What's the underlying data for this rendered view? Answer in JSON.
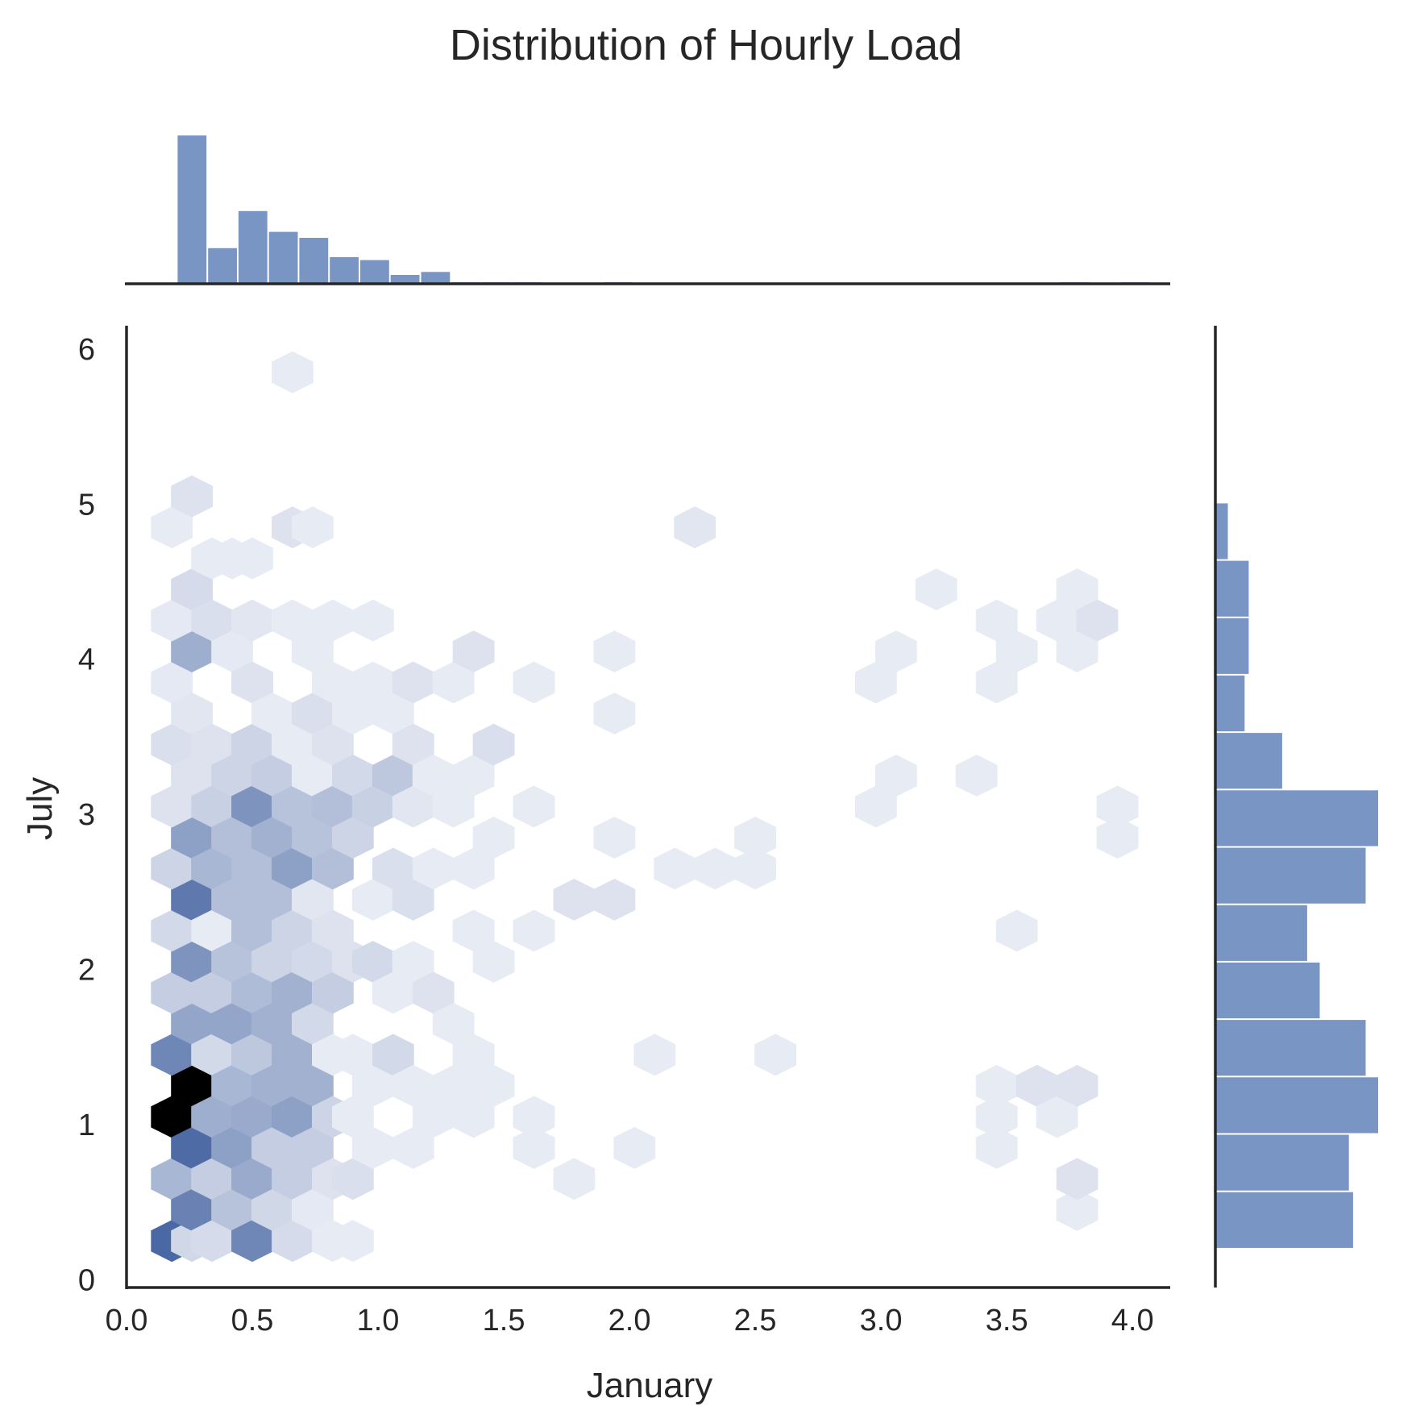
{
  "chart_data": {
    "type": "hexbin",
    "title": "Distribution of Hourly Load",
    "xlabel": "January",
    "ylabel": "July",
    "xlim": [
      0.0,
      4.15
    ],
    "ylim": [
      -0.05,
      6.15
    ],
    "x_ticks": [
      "0.0",
      "0.5",
      "1.0",
      "1.5",
      "2.0",
      "2.5",
      "3.0",
      "3.5",
      "4.0"
    ],
    "y_ticks": [
      "0",
      "1",
      "2",
      "3",
      "4",
      "5",
      "6"
    ],
    "grid": false,
    "colors": {
      "hist": "#4c72b0",
      "hex_max": "#000000",
      "hex_dark": "#3f5f9e",
      "hex_light": "#f2f4f9"
    },
    "hex_grid": {
      "dx": 0.164,
      "dy": 0.2
    },
    "hexbins": [
      {
        "x": 0.18,
        "y": 0.25,
        "d": 0.8
      },
      {
        "x": 0.26,
        "y": 0.25,
        "d": 0.16
      },
      {
        "x": 0.18,
        "y": 1.05,
        "d": 1.0
      },
      {
        "x": 0.18,
        "y": 0.65,
        "d": 0.35
      },
      {
        "x": 0.26,
        "y": 0.45,
        "d": 0.65
      },
      {
        "x": 0.26,
        "y": 0.85,
        "d": 0.78
      },
      {
        "x": 0.26,
        "y": 1.25,
        "d": 1.0
      },
      {
        "x": 0.18,
        "y": 1.45,
        "d": 0.62
      },
      {
        "x": 0.26,
        "y": 1.65,
        "d": 0.45
      },
      {
        "x": 0.18,
        "y": 1.85,
        "d": 0.22
      },
      {
        "x": 0.26,
        "y": 2.05,
        "d": 0.55
      },
      {
        "x": 0.18,
        "y": 2.25,
        "d": 0.15
      },
      {
        "x": 0.26,
        "y": 2.45,
        "d": 0.7
      },
      {
        "x": 0.18,
        "y": 2.65,
        "d": 0.18
      },
      {
        "x": 0.26,
        "y": 2.85,
        "d": 0.48
      },
      {
        "x": 0.18,
        "y": 3.05,
        "d": 0.1
      },
      {
        "x": 0.26,
        "y": 3.25,
        "d": 0.1
      },
      {
        "x": 0.18,
        "y": 3.45,
        "d": 0.12
      },
      {
        "x": 0.26,
        "y": 3.65,
        "d": 0.08
      },
      {
        "x": 0.18,
        "y": 3.85,
        "d": 0.06
      },
      {
        "x": 0.26,
        "y": 4.05,
        "d": 0.4
      },
      {
        "x": 0.18,
        "y": 4.25,
        "d": 0.06
      },
      {
        "x": 0.26,
        "y": 4.45,
        "d": 0.14
      },
      {
        "x": 0.18,
        "y": 4.85,
        "d": 0.05
      },
      {
        "x": 0.26,
        "y": 5.05,
        "d": 0.1
      },
      {
        "x": 0.34,
        "y": 0.25,
        "d": 0.14
      },
      {
        "x": 0.34,
        "y": 0.65,
        "d": 0.22
      },
      {
        "x": 0.34,
        "y": 1.05,
        "d": 0.4
      },
      {
        "x": 0.34,
        "y": 1.45,
        "d": 0.15
      },
      {
        "x": 0.34,
        "y": 1.85,
        "d": 0.22
      },
      {
        "x": 0.34,
        "y": 2.25,
        "d": 0.05
      },
      {
        "x": 0.34,
        "y": 2.65,
        "d": 0.35
      },
      {
        "x": 0.34,
        "y": 3.05,
        "d": 0.2
      },
      {
        "x": 0.34,
        "y": 3.45,
        "d": 0.1
      },
      {
        "x": 0.34,
        "y": 4.25,
        "d": 0.12
      },
      {
        "x": 0.34,
        "y": 4.65,
        "d": 0.05
      },
      {
        "x": 0.42,
        "y": 0.45,
        "d": 0.28
      },
      {
        "x": 0.42,
        "y": 0.85,
        "d": 0.48
      },
      {
        "x": 0.42,
        "y": 1.25,
        "d": 0.35
      },
      {
        "x": 0.42,
        "y": 1.65,
        "d": 0.45
      },
      {
        "x": 0.42,
        "y": 2.05,
        "d": 0.28
      },
      {
        "x": 0.42,
        "y": 2.45,
        "d": 0.3
      },
      {
        "x": 0.42,
        "y": 2.85,
        "d": 0.3
      },
      {
        "x": 0.42,
        "y": 3.25,
        "d": 0.18
      },
      {
        "x": 0.42,
        "y": 4.05,
        "d": 0.06
      },
      {
        "x": 0.42,
        "y": 4.65,
        "d": 0.05
      },
      {
        "x": 0.5,
        "y": 0.25,
        "d": 0.62
      },
      {
        "x": 0.5,
        "y": 0.65,
        "d": 0.42
      },
      {
        "x": 0.5,
        "y": 1.05,
        "d": 0.42
      },
      {
        "x": 0.5,
        "y": 1.45,
        "d": 0.25
      },
      {
        "x": 0.5,
        "y": 1.85,
        "d": 0.32
      },
      {
        "x": 0.5,
        "y": 2.25,
        "d": 0.3
      },
      {
        "x": 0.5,
        "y": 2.65,
        "d": 0.3
      },
      {
        "x": 0.5,
        "y": 3.05,
        "d": 0.55
      },
      {
        "x": 0.5,
        "y": 3.45,
        "d": 0.18
      },
      {
        "x": 0.5,
        "y": 3.85,
        "d": 0.1
      },
      {
        "x": 0.5,
        "y": 4.25,
        "d": 0.08
      },
      {
        "x": 0.5,
        "y": 4.65,
        "d": 0.05
      },
      {
        "x": 0.58,
        "y": 0.45,
        "d": 0.16
      },
      {
        "x": 0.58,
        "y": 0.85,
        "d": 0.22
      },
      {
        "x": 0.58,
        "y": 1.25,
        "d": 0.38
      },
      {
        "x": 0.58,
        "y": 1.65,
        "d": 0.38
      },
      {
        "x": 0.58,
        "y": 2.05,
        "d": 0.18
      },
      {
        "x": 0.58,
        "y": 2.45,
        "d": 0.3
      },
      {
        "x": 0.58,
        "y": 2.85,
        "d": 0.38
      },
      {
        "x": 0.58,
        "y": 3.25,
        "d": 0.22
      },
      {
        "x": 0.58,
        "y": 3.65,
        "d": 0.05
      },
      {
        "x": 0.66,
        "y": 0.25,
        "d": 0.14
      },
      {
        "x": 0.66,
        "y": 0.65,
        "d": 0.22
      },
      {
        "x": 0.66,
        "y": 1.05,
        "d": 0.48
      },
      {
        "x": 0.66,
        "y": 1.45,
        "d": 0.38
      },
      {
        "x": 0.66,
        "y": 1.85,
        "d": 0.38
      },
      {
        "x": 0.66,
        "y": 2.25,
        "d": 0.18
      },
      {
        "x": 0.66,
        "y": 2.65,
        "d": 0.48
      },
      {
        "x": 0.66,
        "y": 3.05,
        "d": 0.28
      },
      {
        "x": 0.66,
        "y": 3.45,
        "d": 0.05
      },
      {
        "x": 0.66,
        "y": 4.25,
        "d": 0.05
      },
      {
        "x": 0.66,
        "y": 4.85,
        "d": 0.1
      },
      {
        "x": 0.66,
        "y": 5.85,
        "d": 0.05
      },
      {
        "x": 0.74,
        "y": 0.45,
        "d": 0.06
      },
      {
        "x": 0.74,
        "y": 0.85,
        "d": 0.22
      },
      {
        "x": 0.74,
        "y": 1.25,
        "d": 0.38
      },
      {
        "x": 0.74,
        "y": 1.65,
        "d": 0.15
      },
      {
        "x": 0.74,
        "y": 2.05,
        "d": 0.15
      },
      {
        "x": 0.74,
        "y": 2.45,
        "d": 0.08
      },
      {
        "x": 0.74,
        "y": 2.85,
        "d": 0.28
      },
      {
        "x": 0.74,
        "y": 3.25,
        "d": 0.05
      },
      {
        "x": 0.74,
        "y": 3.65,
        "d": 0.12
      },
      {
        "x": 0.74,
        "y": 4.05,
        "d": 0.05
      },
      {
        "x": 0.74,
        "y": 4.85,
        "d": 0.05
      },
      {
        "x": 0.82,
        "y": 0.25,
        "d": 0.05
      },
      {
        "x": 0.82,
        "y": 0.65,
        "d": 0.1
      },
      {
        "x": 0.82,
        "y": 1.05,
        "d": 0.18
      },
      {
        "x": 0.82,
        "y": 1.45,
        "d": 0.05
      },
      {
        "x": 0.82,
        "y": 1.85,
        "d": 0.22
      },
      {
        "x": 0.82,
        "y": 2.25,
        "d": 0.1
      },
      {
        "x": 0.82,
        "y": 2.65,
        "d": 0.3
      },
      {
        "x": 0.82,
        "y": 3.05,
        "d": 0.3
      },
      {
        "x": 0.82,
        "y": 3.45,
        "d": 0.1
      },
      {
        "x": 0.82,
        "y": 3.85,
        "d": 0.05
      },
      {
        "x": 0.82,
        "y": 4.25,
        "d": 0.05
      },
      {
        "x": 0.9,
        "y": 0.25,
        "d": 0.05
      },
      {
        "x": 0.9,
        "y": 0.65,
        "d": 0.12
      },
      {
        "x": 0.9,
        "y": 1.05,
        "d": 0.05
      },
      {
        "x": 0.9,
        "y": 1.45,
        "d": 0.05
      },
      {
        "x": 0.9,
        "y": 2.05,
        "d": 0.1
      },
      {
        "x": 0.9,
        "y": 2.85,
        "d": 0.18
      },
      {
        "x": 0.9,
        "y": 3.25,
        "d": 0.15
      },
      {
        "x": 0.9,
        "y": 3.65,
        "d": 0.05
      },
      {
        "x": 0.98,
        "y": 0.85,
        "d": 0.05
      },
      {
        "x": 0.98,
        "y": 1.25,
        "d": 0.05
      },
      {
        "x": 0.98,
        "y": 2.05,
        "d": 0.15
      },
      {
        "x": 0.98,
        "y": 2.45,
        "d": 0.05
      },
      {
        "x": 0.98,
        "y": 3.05,
        "d": 0.2
      },
      {
        "x": 0.98,
        "y": 3.85,
        "d": 0.05
      },
      {
        "x": 0.98,
        "y": 4.25,
        "d": 0.05
      },
      {
        "x": 1.06,
        "y": 1.45,
        "d": 0.15
      },
      {
        "x": 1.06,
        "y": 1.85,
        "d": 0.05
      },
      {
        "x": 1.06,
        "y": 2.65,
        "d": 0.12
      },
      {
        "x": 1.06,
        "y": 3.25,
        "d": 0.25
      },
      {
        "x": 1.06,
        "y": 3.65,
        "d": 0.05
      },
      {
        "x": 1.14,
        "y": 0.85,
        "d": 0.05
      },
      {
        "x": 1.14,
        "y": 1.25,
        "d": 0.05
      },
      {
        "x": 1.14,
        "y": 2.05,
        "d": 0.05
      },
      {
        "x": 1.14,
        "y": 2.45,
        "d": 0.12
      },
      {
        "x": 1.14,
        "y": 3.05,
        "d": 0.08
      },
      {
        "x": 1.14,
        "y": 3.45,
        "d": 0.1
      },
      {
        "x": 1.14,
        "y": 3.85,
        "d": 0.1
      },
      {
        "x": 1.22,
        "y": 1.05,
        "d": 0.05
      },
      {
        "x": 1.22,
        "y": 1.85,
        "d": 0.1
      },
      {
        "x": 1.22,
        "y": 2.65,
        "d": 0.05
      },
      {
        "x": 1.22,
        "y": 3.25,
        "d": 0.05
      },
      {
        "x": 1.3,
        "y": 1.25,
        "d": 0.05
      },
      {
        "x": 1.3,
        "y": 1.65,
        "d": 0.05
      },
      {
        "x": 1.3,
        "y": 3.05,
        "d": 0.05
      },
      {
        "x": 1.3,
        "y": 3.85,
        "d": 0.05
      },
      {
        "x": 1.38,
        "y": 1.05,
        "d": 0.05
      },
      {
        "x": 1.38,
        "y": 1.45,
        "d": 0.05
      },
      {
        "x": 1.38,
        "y": 2.25,
        "d": 0.05
      },
      {
        "x": 1.38,
        "y": 2.65,
        "d": 0.05
      },
      {
        "x": 1.38,
        "y": 3.25,
        "d": 0.05
      },
      {
        "x": 1.38,
        "y": 4.05,
        "d": 0.1
      },
      {
        "x": 1.46,
        "y": 1.25,
        "d": 0.05
      },
      {
        "x": 1.46,
        "y": 2.05,
        "d": 0.05
      },
      {
        "x": 1.46,
        "y": 2.85,
        "d": 0.05
      },
      {
        "x": 1.46,
        "y": 3.45,
        "d": 0.12
      },
      {
        "x": 1.62,
        "y": 0.85,
        "d": 0.05
      },
      {
        "x": 1.62,
        "y": 1.05,
        "d": 0.05
      },
      {
        "x": 1.62,
        "y": 2.25,
        "d": 0.05
      },
      {
        "x": 1.62,
        "y": 3.05,
        "d": 0.05
      },
      {
        "x": 1.62,
        "y": 3.85,
        "d": 0.05
      },
      {
        "x": 1.78,
        "y": 0.65,
        "d": 0.05
      },
      {
        "x": 1.78,
        "y": 2.45,
        "d": 0.1
      },
      {
        "x": 1.94,
        "y": 2.45,
        "d": 0.1
      },
      {
        "x": 1.94,
        "y": 2.85,
        "d": 0.05
      },
      {
        "x": 1.94,
        "y": 3.65,
        "d": 0.05
      },
      {
        "x": 1.94,
        "y": 4.05,
        "d": 0.05
      },
      {
        "x": 2.02,
        "y": 0.85,
        "d": 0.05
      },
      {
        "x": 2.1,
        "y": 1.45,
        "d": 0.05
      },
      {
        "x": 2.18,
        "y": 2.65,
        "d": 0.05
      },
      {
        "x": 2.26,
        "y": 4.85,
        "d": 0.08
      },
      {
        "x": 2.34,
        "y": 2.65,
        "d": 0.05
      },
      {
        "x": 2.5,
        "y": 2.65,
        "d": 0.05
      },
      {
        "x": 2.5,
        "y": 2.85,
        "d": 0.05
      },
      {
        "x": 2.58,
        "y": 1.45,
        "d": 0.05
      },
      {
        "x": 2.98,
        "y": 3.05,
        "d": 0.05
      },
      {
        "x": 2.98,
        "y": 3.85,
        "d": 0.05
      },
      {
        "x": 3.06,
        "y": 3.25,
        "d": 0.05
      },
      {
        "x": 3.06,
        "y": 4.05,
        "d": 0.05
      },
      {
        "x": 3.22,
        "y": 4.45,
        "d": 0.05
      },
      {
        "x": 3.38,
        "y": 3.25,
        "d": 0.05
      },
      {
        "x": 3.46,
        "y": 0.85,
        "d": 0.05
      },
      {
        "x": 3.46,
        "y": 1.05,
        "d": 0.05
      },
      {
        "x": 3.46,
        "y": 1.25,
        "d": 0.05
      },
      {
        "x": 3.46,
        "y": 3.85,
        "d": 0.05
      },
      {
        "x": 3.46,
        "y": 4.25,
        "d": 0.05
      },
      {
        "x": 3.54,
        "y": 2.25,
        "d": 0.05
      },
      {
        "x": 3.54,
        "y": 4.05,
        "d": 0.05
      },
      {
        "x": 3.62,
        "y": 1.25,
        "d": 0.1
      },
      {
        "x": 3.7,
        "y": 1.05,
        "d": 0.05
      },
      {
        "x": 3.7,
        "y": 4.25,
        "d": 0.05
      },
      {
        "x": 3.78,
        "y": 0.45,
        "d": 0.05
      },
      {
        "x": 3.78,
        "y": 0.65,
        "d": 0.1
      },
      {
        "x": 3.78,
        "y": 1.25,
        "d": 0.1
      },
      {
        "x": 3.78,
        "y": 4.05,
        "d": 0.05
      },
      {
        "x": 3.78,
        "y": 4.45,
        "d": 0.05
      },
      {
        "x": 3.86,
        "y": 4.25,
        "d": 0.1
      },
      {
        "x": 3.94,
        "y": 2.85,
        "d": 0.05
      },
      {
        "x": 3.94,
        "y": 3.05,
        "d": 0.05
      }
    ],
    "x_hist": {
      "edges_start": 0.2,
      "bin_width": 0.121,
      "counts": [
        100,
        24,
        49,
        35,
        31,
        18,
        16,
        6,
        8,
        1,
        1,
        1,
        0,
        0,
        1,
        0,
        0,
        0,
        0,
        0,
        0,
        0,
        0,
        0,
        0,
        0,
        0,
        0,
        0,
        1,
        0,
        1
      ]
    },
    "y_hist": {
      "edges_start": 0.2,
      "bin_width": 0.37,
      "counts": [
        33,
        32,
        39,
        36,
        25,
        22,
        36,
        39,
        16,
        7,
        8,
        8,
        3
      ]
    }
  }
}
